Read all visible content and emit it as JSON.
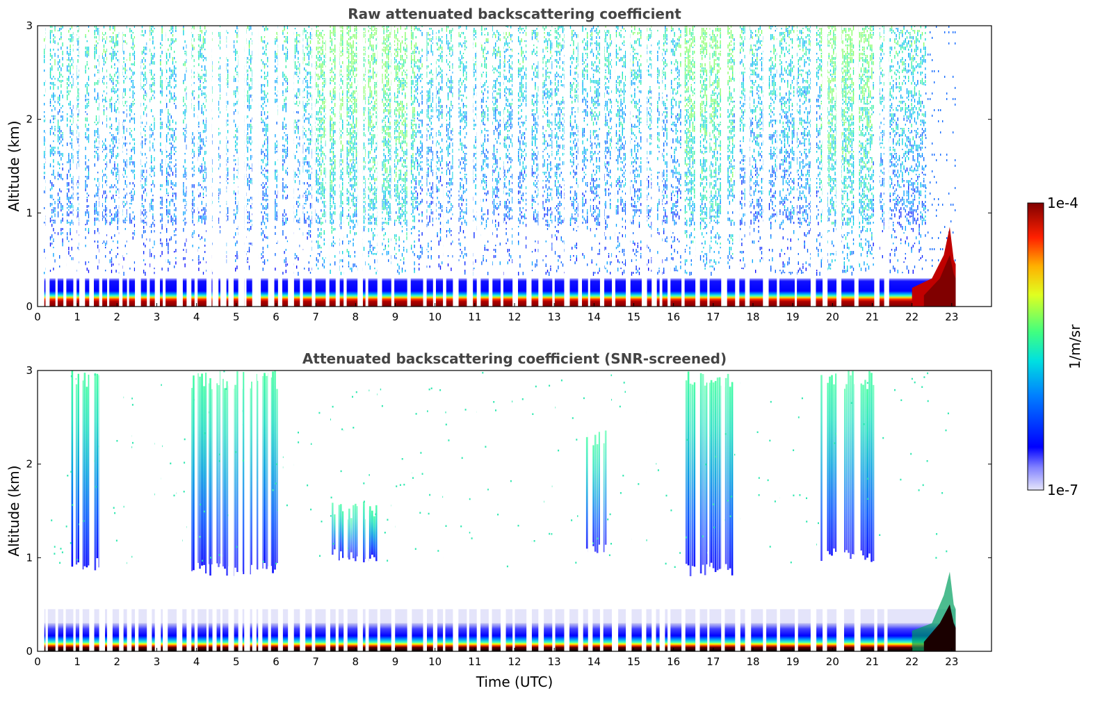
{
  "chart_data": [
    {
      "type": "heatmap",
      "title": "Raw attenuated backscattering coefficient",
      "xlabel": "",
      "ylabel": "Altitude (km)",
      "xlim": [
        0,
        24
      ],
      "ylim": [
        0,
        3
      ],
      "x_ticks": [
        "0",
        "1",
        "2",
        "3",
        "4",
        "5",
        "6",
        "7",
        "8",
        "9",
        "10",
        "11",
        "12",
        "13",
        "14",
        "15",
        "16",
        "17",
        "18",
        "19",
        "20",
        "21",
        "22",
        "23"
      ],
      "y_ticks": [
        "0",
        "1",
        "2",
        "3"
      ],
      "data_end_time": 23.1,
      "data_gaps_utc": [
        0.2,
        0.45,
        0.65,
        0.9,
        1.05,
        1.3,
        1.55,
        1.75,
        2.05,
        2.25,
        2.45,
        2.75,
        2.95,
        3.15,
        3.5,
        3.75,
        3.95,
        4.25,
        4.4,
        4.6,
        4.8,
        5.05,
        5.2,
        5.4,
        5.55,
        5.8,
        6.05,
        6.3,
        6.6,
        6.9,
        7.25,
        7.5,
        7.7,
        8.05,
        8.25,
        8.55,
        8.9,
        9.3,
        9.7,
        9.95,
        10.2,
        10.45,
        10.8,
        11.05,
        11.35,
        11.65,
        11.95,
        12.3,
        12.6,
        12.95,
        13.25,
        13.6,
        13.85,
        14.15,
        14.45,
        14.8,
        15.2,
        15.45,
        15.65,
        15.85,
        16.2,
        16.55,
        16.85,
        17.2,
        17.55,
        17.8,
        18.25,
        18.6,
        19.05,
        19.45,
        19.75,
        20.1,
        20.15,
        20.55,
        21.05,
        21.3
      ],
      "features": {
        "boundary_layer_top_km": 0.25,
        "surface_saturation_km": 0.1,
        "elevated_layer_end": {
          "time_utc": 23.1,
          "max_altitude_km": 0.85
        }
      }
    },
    {
      "type": "heatmap",
      "title": "Attenuated backscattering coefficient (SNR-screened)",
      "xlabel": "Time (UTC)",
      "ylabel": "Altitude (km)",
      "xlim": [
        0,
        24
      ],
      "ylim": [
        0,
        3
      ],
      "x_ticks": [
        "0",
        "1",
        "2",
        "3",
        "4",
        "5",
        "6",
        "7",
        "8",
        "9",
        "10",
        "11",
        "12",
        "13",
        "14",
        "15",
        "16",
        "17",
        "18",
        "19",
        "20",
        "21",
        "22",
        "23"
      ],
      "y_ticks": [
        "0",
        "1",
        "2",
        "3"
      ],
      "data_end_time": 23.1,
      "screened_signal_regions": [
        {
          "t0": 0.85,
          "t1": 1.55,
          "bottom_km": 0.85,
          "top_km": 3.0
        },
        {
          "t0": 3.8,
          "t1": 6.05,
          "bottom_km": 0.8,
          "top_km": 3.0
        },
        {
          "t0": 7.4,
          "t1": 8.6,
          "bottom_km": 0.95,
          "top_km": 1.6
        },
        {
          "t0": 13.8,
          "t1": 14.3,
          "bottom_km": 1.0,
          "top_km": 2.4
        },
        {
          "t0": 16.3,
          "t1": 17.5,
          "bottom_km": 0.8,
          "top_km": 3.0
        },
        {
          "t0": 19.7,
          "t1": 21.1,
          "bottom_km": 0.95,
          "top_km": 3.0
        }
      ],
      "features": {
        "boundary_layer_top_km": 0.3,
        "surface_saturation_km": 0.08
      }
    }
  ],
  "colorbar": {
    "label": "1/m/sr",
    "min_label": "1e-7",
    "max_label": "1e-4",
    "scale": "log",
    "colormap": "jet"
  }
}
